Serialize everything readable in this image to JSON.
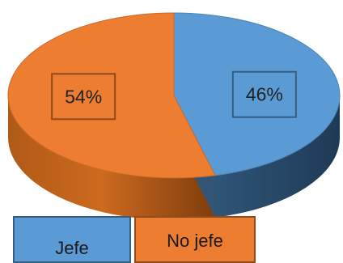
{
  "chart_data": {
    "type": "pie",
    "style": "3d",
    "categories": [
      "Jefe",
      "No jefe"
    ],
    "values": [
      46,
      54
    ],
    "data_labels": [
      "46%",
      "54%"
    ],
    "colors": [
      "#5b9bd5",
      "#ed7d31"
    ],
    "legend": {
      "placement": "bottom",
      "items": [
        "Jefe",
        "No jefe"
      ]
    },
    "title": ""
  }
}
